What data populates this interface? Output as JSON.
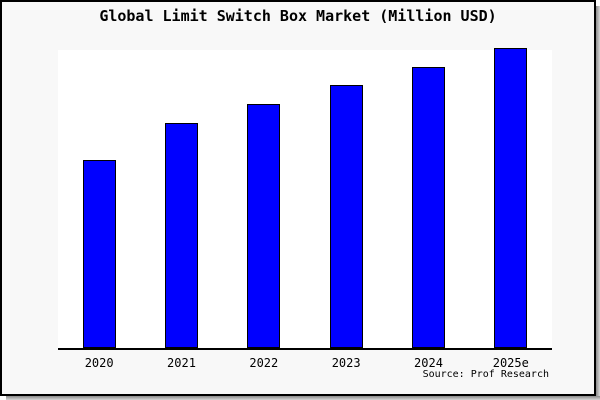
{
  "frame": {
    "background": "#f8f8f8",
    "border_color": "#000000",
    "shadow_color": "#8a8a8a"
  },
  "chart_data": {
    "type": "bar",
    "title": "Global Limit Switch Box Market (Million USD)",
    "categories": [
      "2020",
      "2021",
      "2022",
      "2023",
      "2024",
      "2025e"
    ],
    "values": [
      62.4,
      74.8,
      81.2,
      87.6,
      93.6,
      100
    ],
    "values_unit": "relative bar height, % of 2025e bar (chart displays no y-axis scale and no data labels)",
    "xlabel": "",
    "ylabel": "",
    "y_axis_labels_visible": false,
    "gridlines": false,
    "legend": null,
    "bar_color": "#0000ff",
    "bar_border_color": "#000000",
    "plot_background": "#ffffff",
    "axis_color": "#000000",
    "source_label": "Source: Prof Research"
  }
}
